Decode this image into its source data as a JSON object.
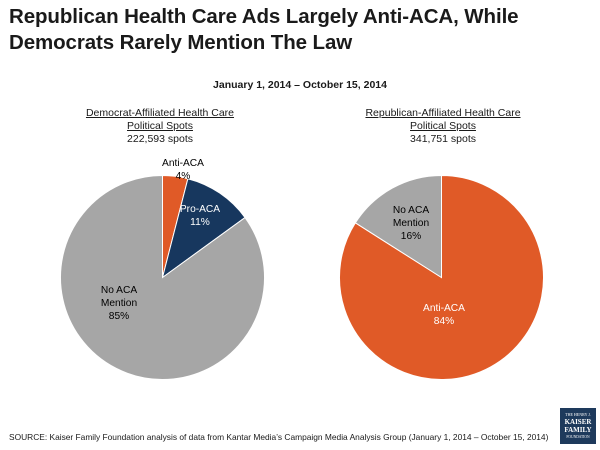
{
  "title": "Republican Health Care Ads Largely Anti-ACA, While Democrats Rarely Mention The Law",
  "subtitle": "January 1, 2014 – October 15, 2014",
  "colors": {
    "anti": "#e05a27",
    "pro": "#17375e",
    "none": "#a6a6a6"
  },
  "chart_data": [
    {
      "type": "pie",
      "title_line1": "Democrat-Affiliated Health Care",
      "title_line2": "Political Spots",
      "spots": "222,593 spots",
      "slices": [
        {
          "name": "Anti-ACA",
          "value": 4,
          "label_name": "Anti-ACA",
          "label_value": "4%",
          "color": "#e05a27"
        },
        {
          "name": "Pro-ACA",
          "value": 11,
          "label_name": "Pro-ACA",
          "label_value": "11%",
          "color": "#17375e"
        },
        {
          "name": "No ACA Mention",
          "value": 85,
          "label_line1": "No ACA",
          "label_line2": "Mention",
          "label_value": "85%",
          "color": "#a6a6a6"
        }
      ]
    },
    {
      "type": "pie",
      "title_line1": "Republican-Affiliated Health Care",
      "title_line2": "Political Spots",
      "spots": "341,751 spots",
      "slices": [
        {
          "name": "Anti-ACA",
          "value": 84,
          "label_name": "Anti-ACA",
          "label_value": "84%",
          "color": "#e05a27"
        },
        {
          "name": "No ACA Mention",
          "value": 16,
          "label_line1": "No ACA",
          "label_line2": "Mention",
          "label_value": "16%",
          "color": "#a6a6a6"
        }
      ]
    }
  ],
  "source": "SOURCE: Kaiser Family Foundation analysis of data from Kantar Media’s Campaign Media Analysis Group (January 1, 2014 – October 15, 2014)",
  "logo": {
    "line1": "THE HENRY J.",
    "line2": "KAISER",
    "line3": "FAMILY",
    "line4": "FOUNDATION"
  }
}
